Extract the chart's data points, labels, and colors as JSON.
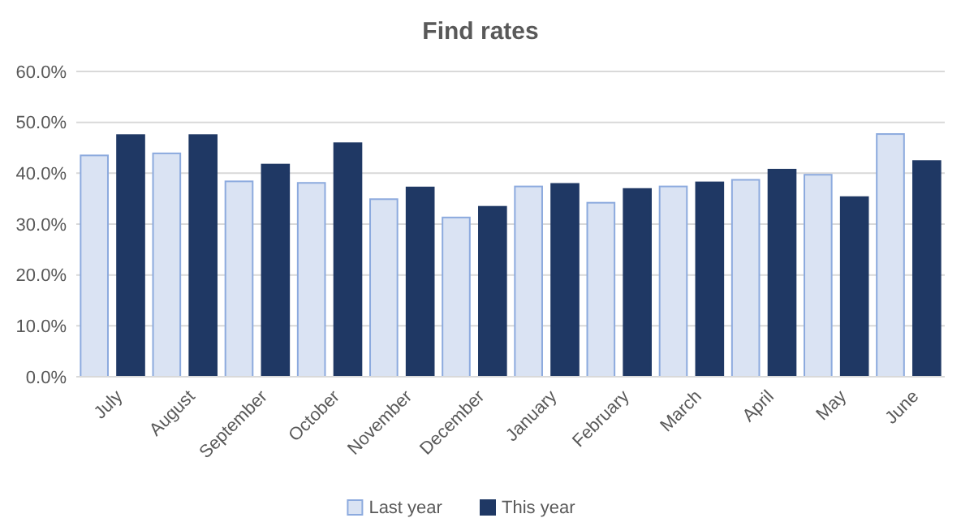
{
  "chart_data": {
    "type": "bar",
    "title": "Find rates",
    "categories": [
      "July",
      "August",
      "September",
      "October",
      "November",
      "December",
      "January",
      "February",
      "March",
      "April",
      "May",
      "June"
    ],
    "series": [
      {
        "name": "Last year",
        "color": "#dae3f3",
        "values": [
          43.5,
          43.9,
          38.4,
          38.1,
          34.9,
          31.3,
          37.4,
          34.2,
          37.4,
          38.7,
          39.7,
          47.7
        ]
      },
      {
        "name": "This year",
        "color": "#1f3864",
        "values": [
          47.5,
          47.5,
          41.7,
          45.9,
          37.2,
          33.4,
          37.9,
          36.9,
          38.2,
          40.7,
          35.3,
          42.4
        ]
      }
    ],
    "ylim": [
      0,
      60
    ],
    "yticks": [
      {
        "value": 0,
        "label": "0.0%"
      },
      {
        "value": 10,
        "label": "10.0%"
      },
      {
        "value": 20,
        "label": "20.0%"
      },
      {
        "value": 30,
        "label": "30.0%"
      },
      {
        "value": 40,
        "label": "40.0%"
      },
      {
        "value": 50,
        "label": "50.0%"
      },
      {
        "value": 60,
        "label": "60.0%"
      }
    ],
    "grid": "y",
    "legend": "bottom"
  }
}
